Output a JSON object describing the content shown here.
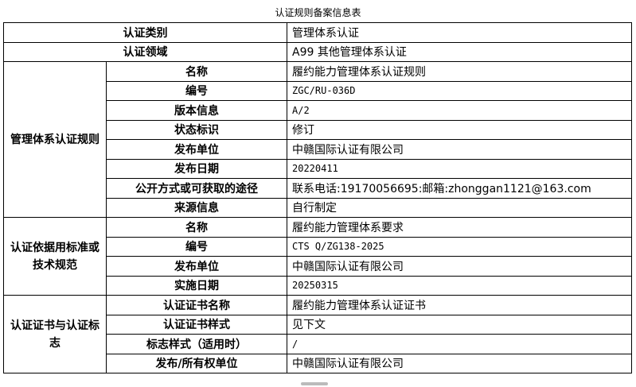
{
  "title": "认证规则备案信息表",
  "top_rows": [
    {
      "label": "认证类别",
      "value": "管理体系认证"
    },
    {
      "label": "认证领域",
      "value": "A99 其他管理体系认证"
    }
  ],
  "groups": [
    {
      "label": "管理体系认证规则",
      "rows": [
        {
          "label": "名称",
          "value": "履约能力管理体系认证规则"
        },
        {
          "label": "编号",
          "value": "ZGC/RU-036D"
        },
        {
          "label": "版本信息",
          "value": "A/2"
        },
        {
          "label": "状态标识",
          "value": "修订"
        },
        {
          "label": "发布单位",
          "value": "中赣国际认证有限公司"
        },
        {
          "label": "发布日期",
          "value": "20220411"
        },
        {
          "label": "公开方式或可获取的途径",
          "value": "联系电话:19170056695:邮箱:zhonggan1121@163.com"
        },
        {
          "label": "来源信息",
          "value": "自行制定"
        }
      ]
    },
    {
      "label": "认证依据用标准或技术规范",
      "rows": [
        {
          "label": "名称",
          "value": "履约能力管理体系要求"
        },
        {
          "label": "编号",
          "value": "CTS Q/ZG138-2025"
        },
        {
          "label": "发布单位",
          "value": "中赣国际认证有限公司"
        },
        {
          "label": "实施日期",
          "value": "20250315"
        }
      ]
    },
    {
      "label": "认证证书与认证标志",
      "rows": [
        {
          "label": "认证证书名称",
          "value": "履约能力管理体系认证证书"
        },
        {
          "label": "认证证书样式",
          "value": "见下文"
        },
        {
          "label": "标志样式（适用时）",
          "value": "/"
        },
        {
          "label": "发布/所有权单位",
          "value": "中赣国际认证有限公司"
        }
      ]
    }
  ]
}
